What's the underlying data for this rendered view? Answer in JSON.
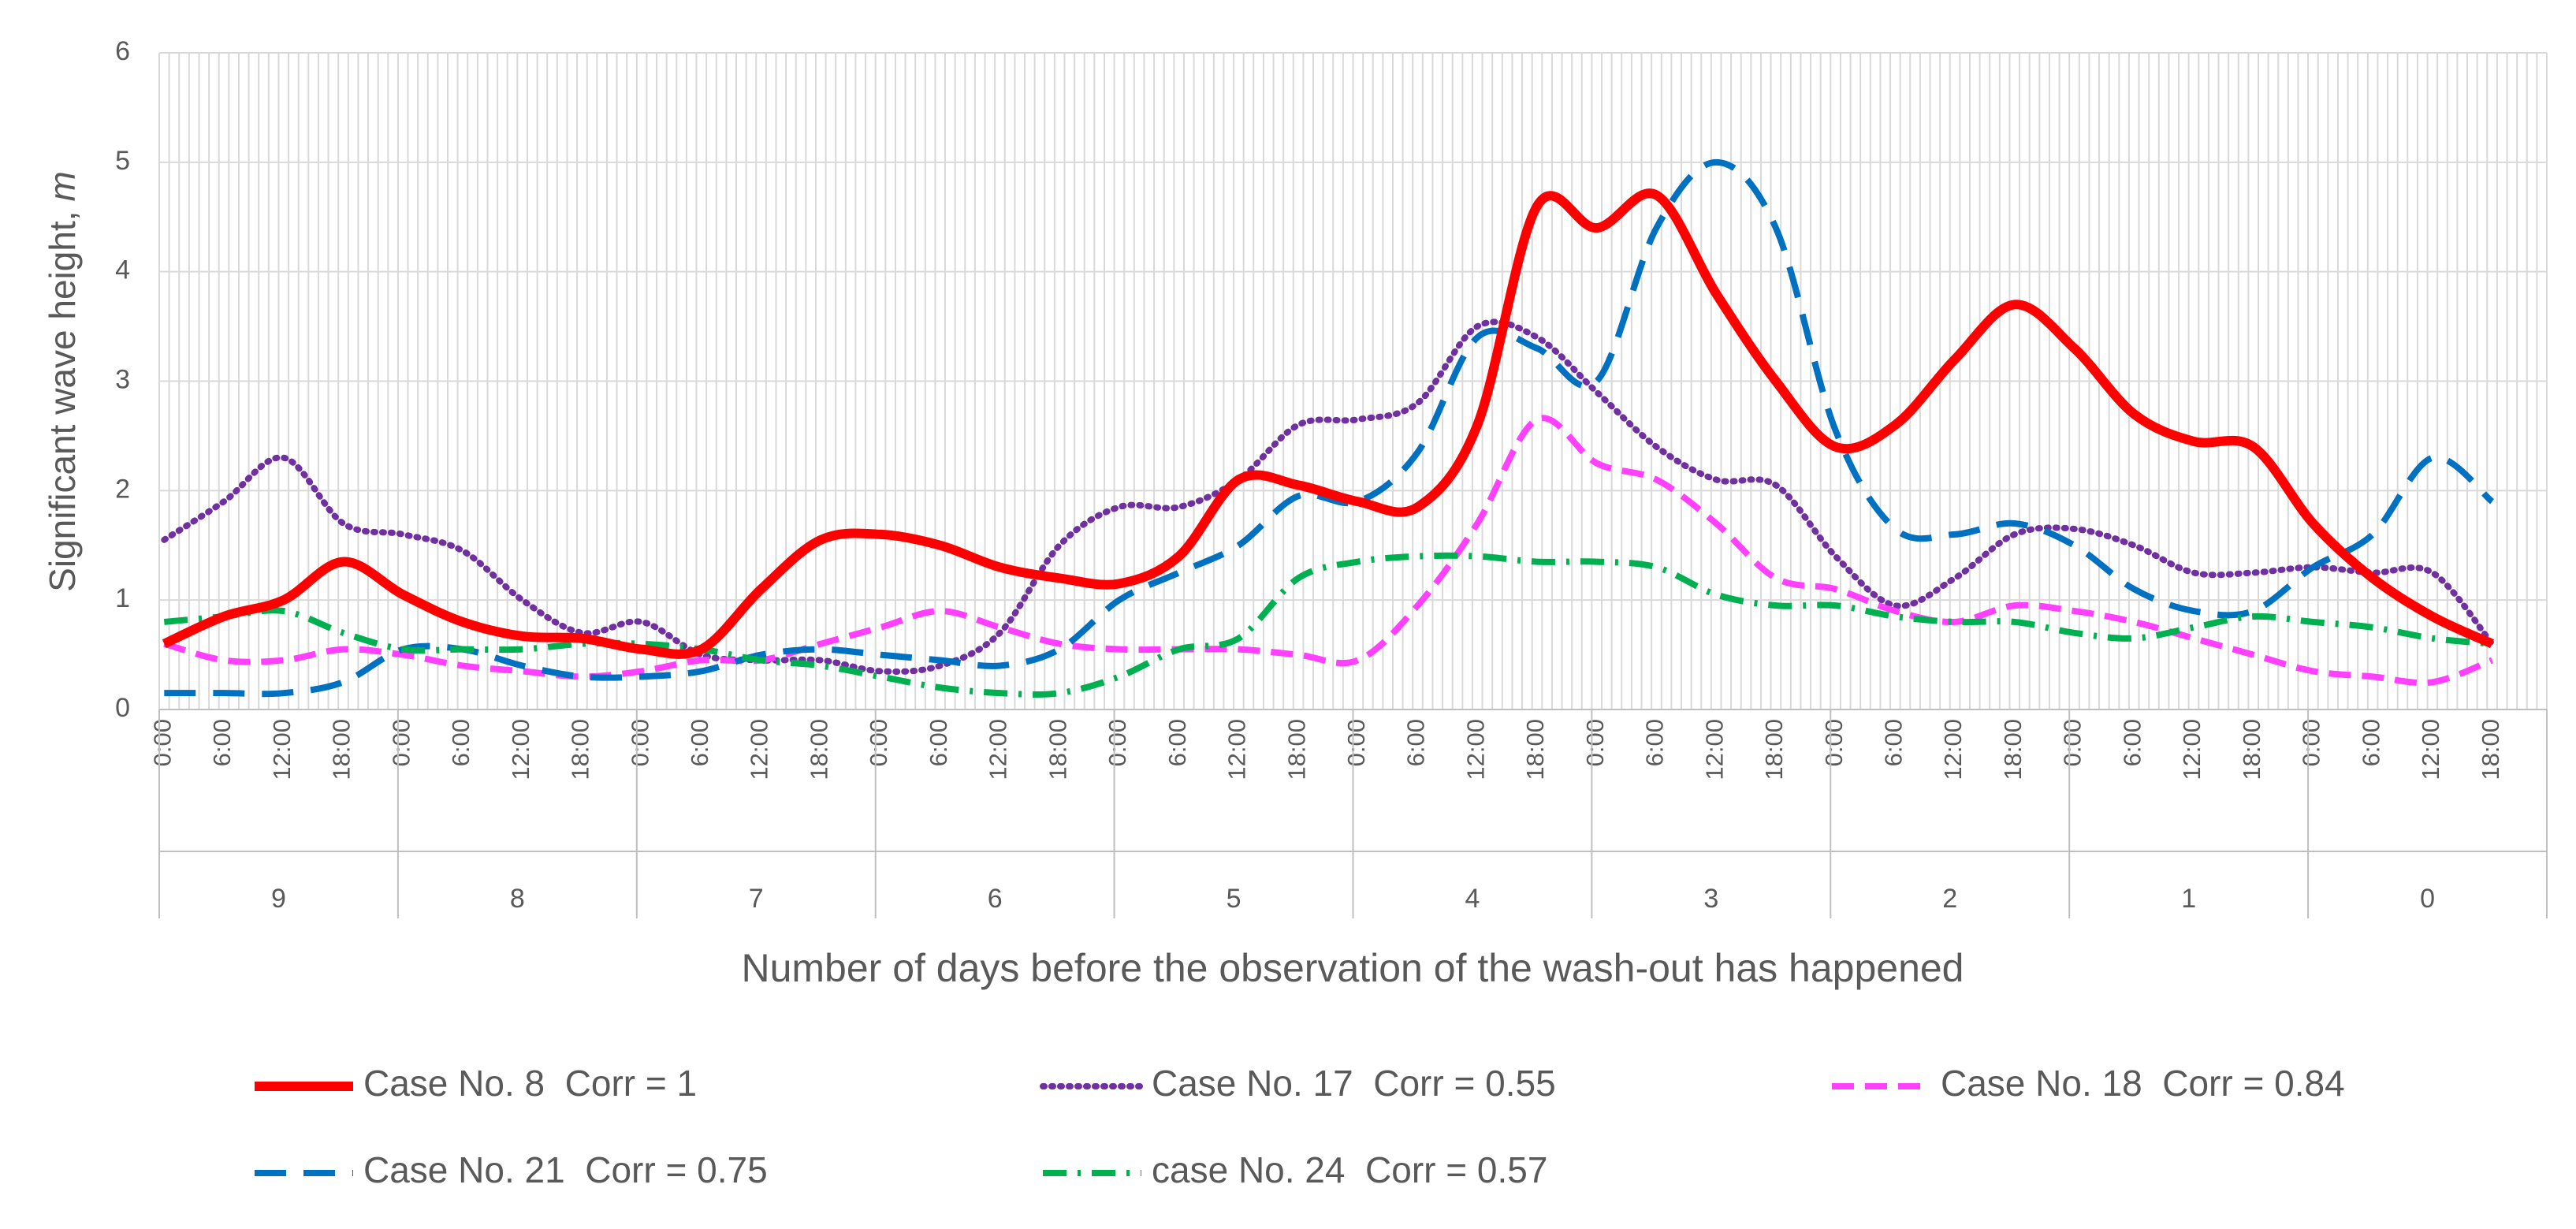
{
  "chart_data": {
    "type": "line",
    "ylabel": "Significant wave height,",
    "ylabel_unit": "m",
    "xlabel": "Number of days before the observation of the wash-out has happened",
    "categories": [
      "0:00",
      "6:00",
      "12:00",
      "18:00",
      "0:00",
      "6:00",
      "12:00",
      "18:00",
      "0:00",
      "6:00",
      "12:00",
      "18:00",
      "0:00",
      "6:00",
      "12:00",
      "18:00",
      "0:00",
      "6:00",
      "12:00",
      "18:00",
      "0:00",
      "6:00",
      "12:00",
      "18:00",
      "0:00",
      "6:00",
      "12:00",
      "18:00",
      "0:00",
      "6:00",
      "12:00",
      "18:00",
      "0:00",
      "6:00",
      "12:00",
      "18:00",
      "0:00",
      "6:00",
      "12:00",
      "18:00"
    ],
    "groups": [
      9,
      8,
      7,
      6,
      5,
      4,
      3,
      2,
      1,
      0
    ],
    "ylim": [
      0,
      6
    ],
    "yticks": [
      0,
      1,
      2,
      3,
      4,
      5,
      6
    ],
    "grid": true,
    "series": [
      {
        "name": "Case No. 8  Corr = 1",
        "color": "#ff0000",
        "style": "solid",
        "values": [
          0.6,
          0.85,
          1.0,
          1.35,
          1.05,
          0.8,
          0.67,
          0.65,
          0.55,
          0.55,
          1.1,
          1.55,
          1.6,
          1.5,
          1.3,
          1.2,
          1.15,
          1.4,
          2.1,
          2.05,
          1.9,
          1.85,
          2.6,
          4.6,
          4.4,
          4.7,
          3.8,
          3.0,
          2.4,
          2.6,
          3.2,
          3.7,
          3.3,
          2.7,
          2.45,
          2.4,
          1.7,
          1.2,
          0.85,
          0.6
        ]
      },
      {
        "name": "Case No. 17  Corr = 0.55",
        "color": "#7030a0",
        "style": "dotted",
        "values": [
          1.55,
          1.9,
          2.3,
          1.7,
          1.6,
          1.45,
          1.0,
          0.7,
          0.8,
          0.5,
          0.45,
          0.45,
          0.35,
          0.4,
          0.7,
          1.5,
          1.85,
          1.85,
          2.1,
          2.6,
          2.65,
          2.8,
          3.5,
          3.4,
          2.9,
          2.4,
          2.1,
          2.05,
          1.4,
          0.95,
          1.2,
          1.6,
          1.65,
          1.5,
          1.25,
          1.25,
          1.3,
          1.25,
          1.25,
          0.6
        ]
      },
      {
        "name": "Case No. 18  Corr = 0.84",
        "color": "#ff40ff",
        "style": "dashed",
        "values": [
          0.6,
          0.45,
          0.45,
          0.55,
          0.5,
          0.4,
          0.35,
          0.3,
          0.35,
          0.45,
          0.45,
          0.6,
          0.75,
          0.9,
          0.75,
          0.6,
          0.55,
          0.55,
          0.55,
          0.5,
          0.45,
          0.95,
          1.7,
          2.65,
          2.25,
          2.1,
          1.7,
          1.2,
          1.1,
          0.9,
          0.8,
          0.95,
          0.9,
          0.8,
          0.65,
          0.5,
          0.35,
          0.3,
          0.25,
          0.45
        ]
      },
      {
        "name": "Case No. 21  Corr = 0.75",
        "color": "#0070c0",
        "style": "longdash",
        "values": [
          0.15,
          0.15,
          0.15,
          0.25,
          0.55,
          0.55,
          0.4,
          0.3,
          0.3,
          0.35,
          0.5,
          0.55,
          0.5,
          0.45,
          0.4,
          0.55,
          1.0,
          1.25,
          1.5,
          1.95,
          1.9,
          2.35,
          3.4,
          3.3,
          3.0,
          4.4,
          5.0,
          4.4,
          2.55,
          1.65,
          1.6,
          1.7,
          1.5,
          1.1,
          0.9,
          0.9,
          1.3,
          1.6,
          2.3,
          1.9
        ]
      },
      {
        "name": "case No. 24  Corr = 0.57",
        "color": "#00b050",
        "style": "dashdot",
        "values": [
          0.8,
          0.85,
          0.9,
          0.7,
          0.55,
          0.55,
          0.55,
          0.6,
          0.6,
          0.55,
          0.45,
          0.4,
          0.3,
          0.2,
          0.15,
          0.15,
          0.3,
          0.55,
          0.65,
          1.2,
          1.35,
          1.4,
          1.4,
          1.35,
          1.35,
          1.3,
          1.05,
          0.95,
          0.95,
          0.85,
          0.8,
          0.8,
          0.7,
          0.65,
          0.75,
          0.85,
          0.8,
          0.75,
          0.65,
          0.6
        ]
      }
    ]
  }
}
